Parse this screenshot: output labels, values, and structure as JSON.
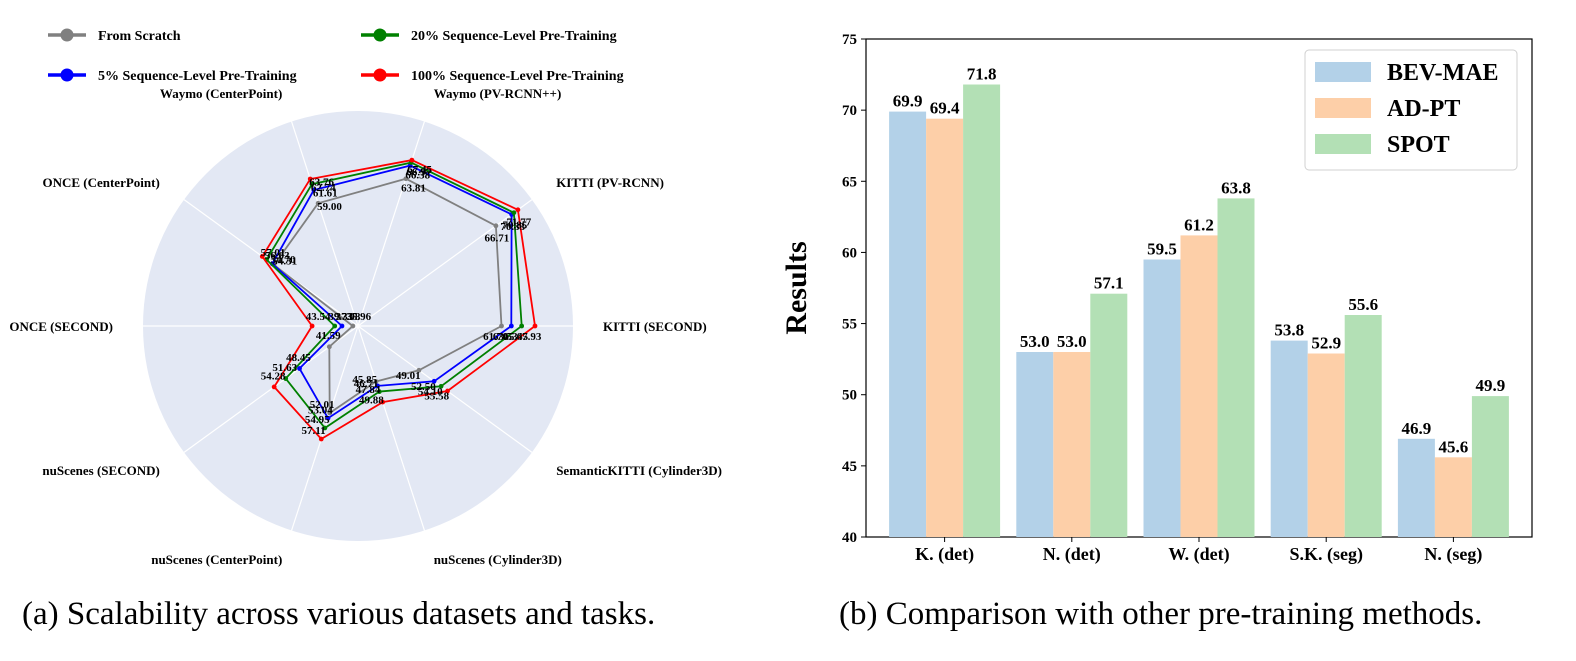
{
  "captions": {
    "a": "(a) Scalability across various datasets and tasks.",
    "b": "(b) Comparison with other pre-training methods."
  },
  "chart_data": [
    {
      "type": "radar",
      "axes": [
        "Waymo (PV-RCNN++)",
        "KITTI (PV-RCNN)",
        "KITTI (SECOND)",
        "SemanticKITTI (Cylinder3D)",
        "nuScenes (Cylinder3D)",
        "nuScenes (CenterPoint)",
        "nuScenes (SECOND)",
        "ONCE (SECOND)",
        "ONCE (CenterPoint)",
        "Waymo (CenterPoint)"
      ],
      "series": [
        {
          "name": "From Scratch",
          "color": "#808080",
          "values": [
            63.81,
            66.71,
            61.7,
            49.01,
            45.85,
            52.01,
            41.59,
            35.96,
            54.31,
            59.0
          ]
        },
        {
          "name": "5% Sequence-Level Pre-Training",
          "color": "#0000ff",
          "values": [
            66.38,
            70.33,
            63.53,
            52.5,
            46.71,
            53.04,
            48.45,
            37.98,
            54.7,
            61.61
          ]
        },
        {
          "name": "20%   Sequence-Level Pre-Training",
          "color": "#008000",
          "values": [
            66.97,
            70.85,
            65.45,
            54.1,
            47.84,
            54.95,
            51.63,
            39.33,
            56.03,
            62.74
          ]
        },
        {
          "name": "100% Sequence-Level Pre-Training",
          "color": "#ff0000",
          "values": [
            67.45,
            71.77,
            67.93,
            55.58,
            49.88,
            57.11,
            54.28,
            43.54,
            57.01,
            63.76
          ]
        }
      ]
    },
    {
      "type": "bar",
      "categories": [
        "K. (det)",
        "N. (det)",
        "W. (det)",
        "S.K. (seg)",
        "N. (seg)"
      ],
      "series": [
        {
          "name": "BEV-MAE",
          "color": "#b3d1e8",
          "values": [
            69.9,
            53.0,
            59.5,
            53.8,
            46.9
          ]
        },
        {
          "name": "AD-PT",
          "color": "#fdcfa8",
          "values": [
            69.4,
            53.0,
            61.2,
            52.9,
            45.6
          ]
        },
        {
          "name": "SPOT",
          "color": "#b3e0b5",
          "values": [
            71.8,
            57.1,
            63.8,
            55.6,
            49.9
          ]
        }
      ],
      "ylabel": "Results",
      "ylim": [
        40,
        75
      ],
      "yticks": [
        "40",
        "45",
        "50",
        "55",
        "60",
        "65",
        "70",
        "75"
      ],
      "legend": "top-right",
      "grid": false
    }
  ]
}
